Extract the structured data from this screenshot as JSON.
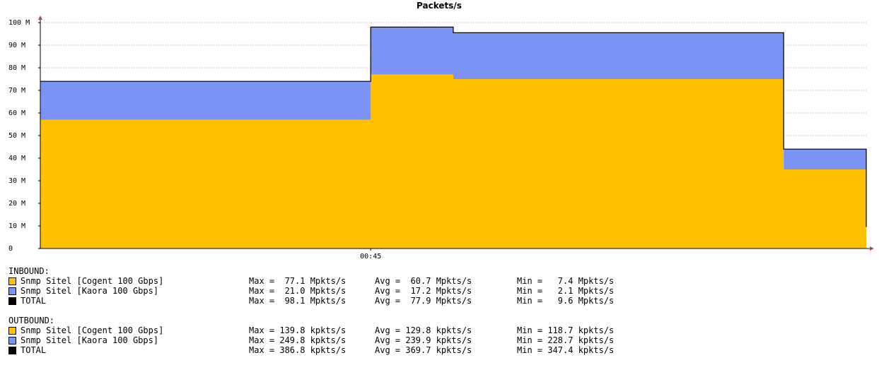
{
  "chart_data": {
    "type": "area",
    "title": "Packets/s",
    "ylim": [
      0,
      100000000
    ],
    "y_ticks": [
      {
        "value": 0,
        "label": "0"
      },
      {
        "value": 10000000,
        "label": "10 M"
      },
      {
        "value": 20000000,
        "label": "20 M"
      },
      {
        "value": 30000000,
        "label": "30 M"
      },
      {
        "value": 40000000,
        "label": "40 M"
      },
      {
        "value": 50000000,
        "label": "50 M"
      },
      {
        "value": 60000000,
        "label": "60 M"
      },
      {
        "value": 70000000,
        "label": "70 M"
      },
      {
        "value": 80000000,
        "label": "80 M"
      },
      {
        "value": 90000000,
        "label": "90 M"
      },
      {
        "value": 100000000,
        "label": "100 M"
      }
    ],
    "x_ticks": [
      {
        "label": "00:45",
        "index": 4
      }
    ],
    "grid": true,
    "stacked": true,
    "x_unit": "interval",
    "x_range": [
      0,
      10
    ],
    "x": [
      0,
      1,
      2,
      3,
      4,
      5,
      6,
      7,
      8,
      9,
      10
    ],
    "series": [
      {
        "name": "Snmp Sitel [Cogent 100 Gbps]",
        "color": "#ffc000",
        "values": [
          57000000,
          57000000,
          57000000,
          57000000,
          77000000,
          75000000,
          75000000,
          75000000,
          75000000,
          35000000,
          7500000
        ]
      },
      {
        "name": "Snmp Sitel [Kaora 100 Gbps]",
        "color": "#7b93f5",
        "values": [
          17000000,
          17000000,
          17000000,
          17000000,
          21000000,
          20500000,
          20500000,
          20500000,
          20500000,
          9000000,
          2000000
        ]
      }
    ],
    "total_color": "#000000"
  },
  "legend": {
    "inbound": {
      "title": "INBOUND:",
      "rows": [
        {
          "color": "#ffc000",
          "name": "Snmp Sitel [Cogent 100 Gbps]",
          "max": "Max =  77.1 Mpkts/s",
          "avg": "Avg =  60.7 Mpkts/s",
          "min": "Min =   7.4 Mpkts/s"
        },
        {
          "color": "#7b93f5",
          "name": "Snmp Sitel [Kaora 100 Gbps]",
          "max": "Max =  21.0 Mpkts/s",
          "avg": "Avg =  17.2 Mpkts/s",
          "min": "Min =   2.1 Mpkts/s"
        },
        {
          "color": "#000000",
          "name": "TOTAL",
          "max": "Max =  98.1 Mpkts/s",
          "avg": "Avg =  77.9 Mpkts/s",
          "min": "Min =   9.6 Mpkts/s"
        }
      ]
    },
    "outbound": {
      "title": "OUTBOUND:",
      "rows": [
        {
          "color": "#ffc000",
          "name": "Snmp Sitel [Cogent 100 Gbps]",
          "max": "Max = 139.8 kpkts/s",
          "avg": "Avg = 129.8 kpkts/s",
          "min": "Min = 118.7 kpkts/s"
        },
        {
          "color": "#7b93f5",
          "name": "Snmp Sitel [Kaora 100 Gbps]",
          "max": "Max = 249.8 kpkts/s",
          "avg": "Avg = 239.9 kpkts/s",
          "min": "Min = 228.7 kpkts/s"
        },
        {
          "color": "#000000",
          "name": "TOTAL",
          "max": "Max = 386.8 kpkts/s",
          "avg": "Avg = 369.7 kpkts/s",
          "min": "Min = 347.4 kpkts/s"
        }
      ]
    }
  }
}
